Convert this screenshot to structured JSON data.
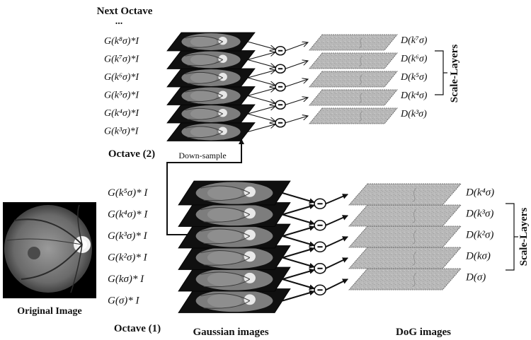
{
  "labels": {
    "next_octave": "Next Octave",
    "ellipsis": "...",
    "octave2": "Octave (2)",
    "octave1": "Octave (1)",
    "down_sample": "Down-sample",
    "original_image": "Original Image",
    "gaussian_images": "Gaussian images",
    "dog_images": "DoG images",
    "scale_layers": "Scale-Layers",
    "minus_symbol": "−"
  },
  "octave2": {
    "gaussian": [
      "G(k⁸σ)*I",
      "G(k⁷σ)*I",
      "G(k⁶σ)*I",
      "G(k⁵σ)*I",
      "G(k⁴σ)*I",
      "G(k³σ)*I"
    ],
    "dog": [
      "D(k⁷σ)",
      "D(k⁶σ)",
      "D(k⁵σ)",
      "D(k⁴σ)",
      "D(k³σ)"
    ]
  },
  "octave1": {
    "gaussian": [
      "G(k⁵σ)* I",
      "G(k⁴σ)* I",
      "G(k³σ)* I",
      "G(k²σ)* I",
      "G(kσ)* I",
      "G(σ)* I"
    ],
    "dog": [
      "D(k⁴σ)",
      "D(k³σ)",
      "D(k²σ)",
      "D(kσ)",
      "D(σ)"
    ]
  }
}
